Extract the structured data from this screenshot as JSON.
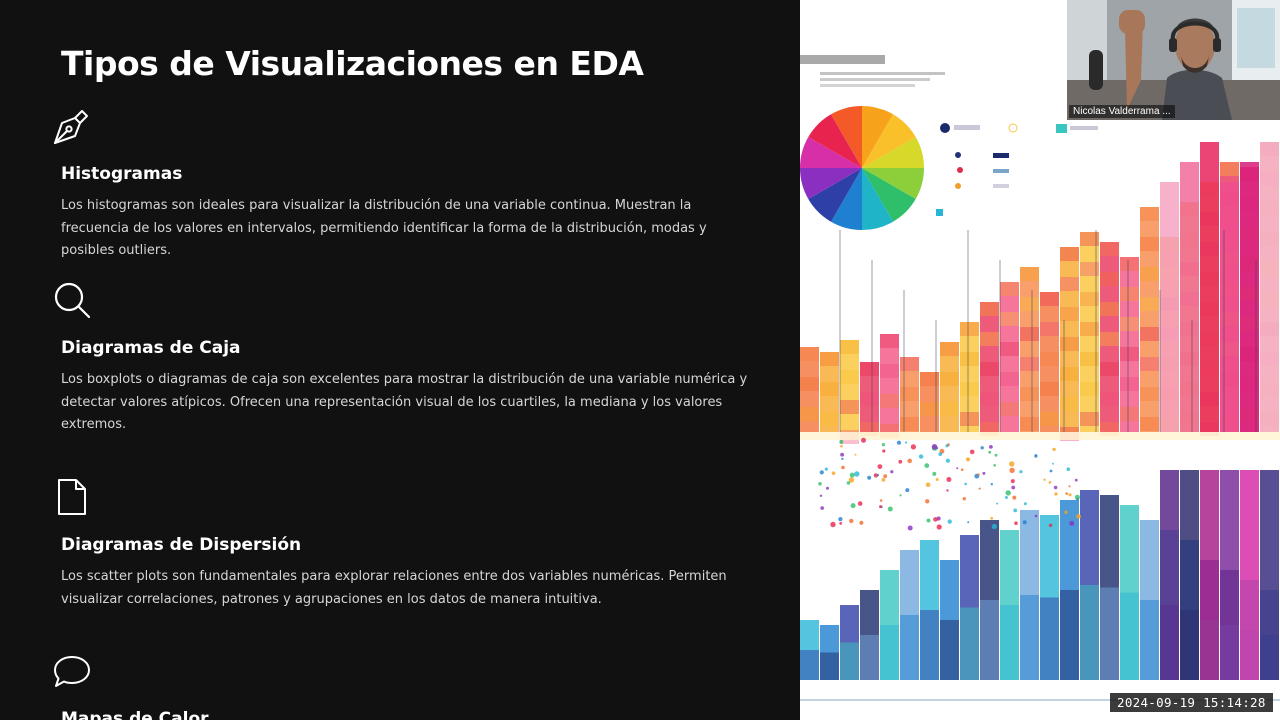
{
  "slide": {
    "title": "Tipos de Visualizaciones en EDA",
    "sections": [
      {
        "icon": "pen-nib-icon",
        "title": "Histogramas",
        "description": "Los histogramas son ideales para visualizar la distribución de una variable continua. Muestran la frecuencia de los valores en intervalos, permitiendo identificar la forma de la distribución, modas y posibles outliers."
      },
      {
        "icon": "search-icon",
        "title": "Diagramas de Caja",
        "description": "Los boxplots o diagramas de caja son excelentes para mostrar la distribución de una variable numérica y detectar valores atípicos. Ofrecen una representación visual de los cuartiles, la mediana y los valores extremos."
      },
      {
        "icon": "document-icon",
        "title": "Diagramas de Dispersión",
        "description": "Los scatter plots son fundamentales para explorar relaciones entre dos variables numéricas. Permiten visualizar correlaciones, patrones y agrupaciones en los datos de manera intuitiva."
      },
      {
        "icon": "speech-bubble-icon",
        "title": "Mapas de Calor",
        "description": ""
      }
    ]
  },
  "video": {
    "participant_name": "Nicolas Valderrama ..."
  },
  "recording": {
    "timestamp": "2024-09-19  15:14:28"
  }
}
